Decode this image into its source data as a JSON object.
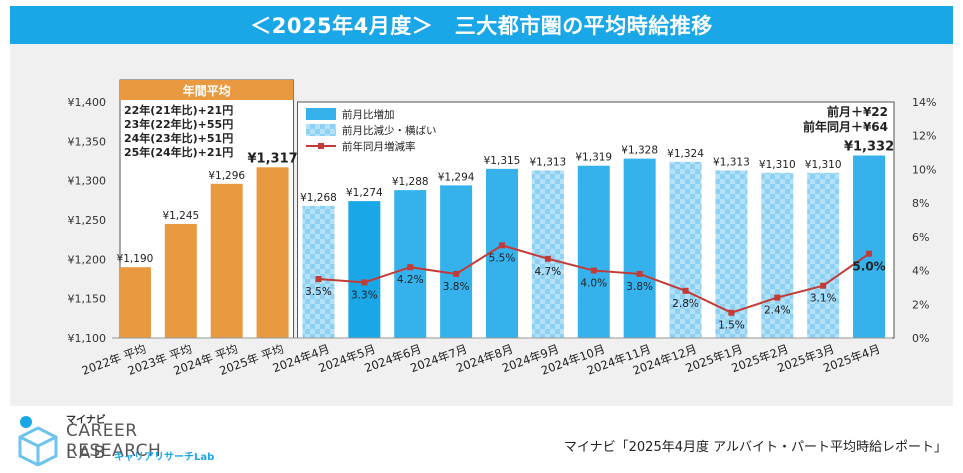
{
  "title": "＜2025年4月度＞　三大都市圏の平均時給推移",
  "source": "マイナビ「2025年4月度 アルバイト・パート平均時給レポート」",
  "logo": {
    "small": "マイナビ",
    "line1": "CAREER RESEARCH",
    "line2": "LAB",
    "kana": "キャリアリサーチLab"
  },
  "annual_box": {
    "header": "年間平均",
    "lines": [
      "22年(21年比)+21円",
      "23年(22年比)+55円",
      "24年(23年比)+51円",
      "25年(24年比)+21円"
    ]
  },
  "summary": {
    "line1": "前月＋¥22",
    "line2": "前年同月＋¥64"
  },
  "colors": {
    "annual": "#e9993f",
    "annual_box_bg": "#ffffff",
    "increase": "#35b2ec",
    "flat_light": "#b3e1f8",
    "flat_dark": "#8ed0f3",
    "line": "#c23b36",
    "title_bg": "#1aa7e8",
    "highlight_bar": "#1aa7e8"
  },
  "chart_data": {
    "type": "bar+line",
    "categories": [
      "2022年 平均",
      "2023年 平均",
      "2024年 平均",
      "2025年 平均",
      "2024年4月",
      "2024年5月",
      "2024年6月",
      "2024年7月",
      "2024年8月",
      "2024年9月",
      "2024年10月",
      "2024年11月",
      "2024年12月",
      "2025年1月",
      "2025年2月",
      "2025年3月",
      "2025年4月"
    ],
    "bars": {
      "values": [
        1190,
        1245,
        1296,
        1317,
        1268,
        1274,
        1288,
        1294,
        1315,
        1313,
        1319,
        1328,
        1324,
        1313,
        1310,
        1310,
        1332
      ],
      "labels": [
        "¥1,190",
        "¥1,245",
        "¥1,296",
        "¥1,317",
        "¥1,268",
        "¥1,274",
        "¥1,288",
        "¥1,294",
        "¥1,315",
        "¥1,313",
        "¥1,319",
        "¥1,328",
        "¥1,324",
        "¥1,313",
        "¥1,310",
        "¥1,310",
        "¥1,332"
      ],
      "kind": [
        "annual",
        "annual",
        "annual",
        "annual",
        "flat",
        "highlight",
        "increase",
        "increase",
        "increase",
        "flat",
        "increase",
        "increase",
        "flat",
        "flat",
        "flat",
        "flat",
        "increase"
      ]
    },
    "line": {
      "name": "前年同月増減率",
      "values": [
        3.5,
        3.3,
        4.2,
        3.8,
        5.5,
        4.7,
        4.0,
        3.8,
        2.8,
        1.5,
        2.4,
        3.1,
        5.0
      ],
      "labels": [
        "3.5%",
        "3.3%",
        "4.2%",
        "3.8%",
        "5.5%",
        "4.7%",
        "4.0%",
        "3.8%",
        "2.8%",
        "1.5%",
        "2.4%",
        "3.1%",
        "5.0%"
      ]
    },
    "legend": [
      "前月比増加",
      "前月比減少・横ばい",
      "前年同月増減率"
    ],
    "y_left": {
      "min": 1100,
      "max": 1400,
      "ticks": [
        "¥1,100",
        "¥1,150",
        "¥1,200",
        "¥1,250",
        "¥1,300",
        "¥1,350",
        "¥1,400"
      ]
    },
    "y_right": {
      "min": 0,
      "max": 14,
      "ticks": [
        "0%",
        "2%",
        "4%",
        "6%",
        "8%",
        "10%",
        "12%",
        "14%"
      ]
    },
    "legend_position": "top-left"
  }
}
